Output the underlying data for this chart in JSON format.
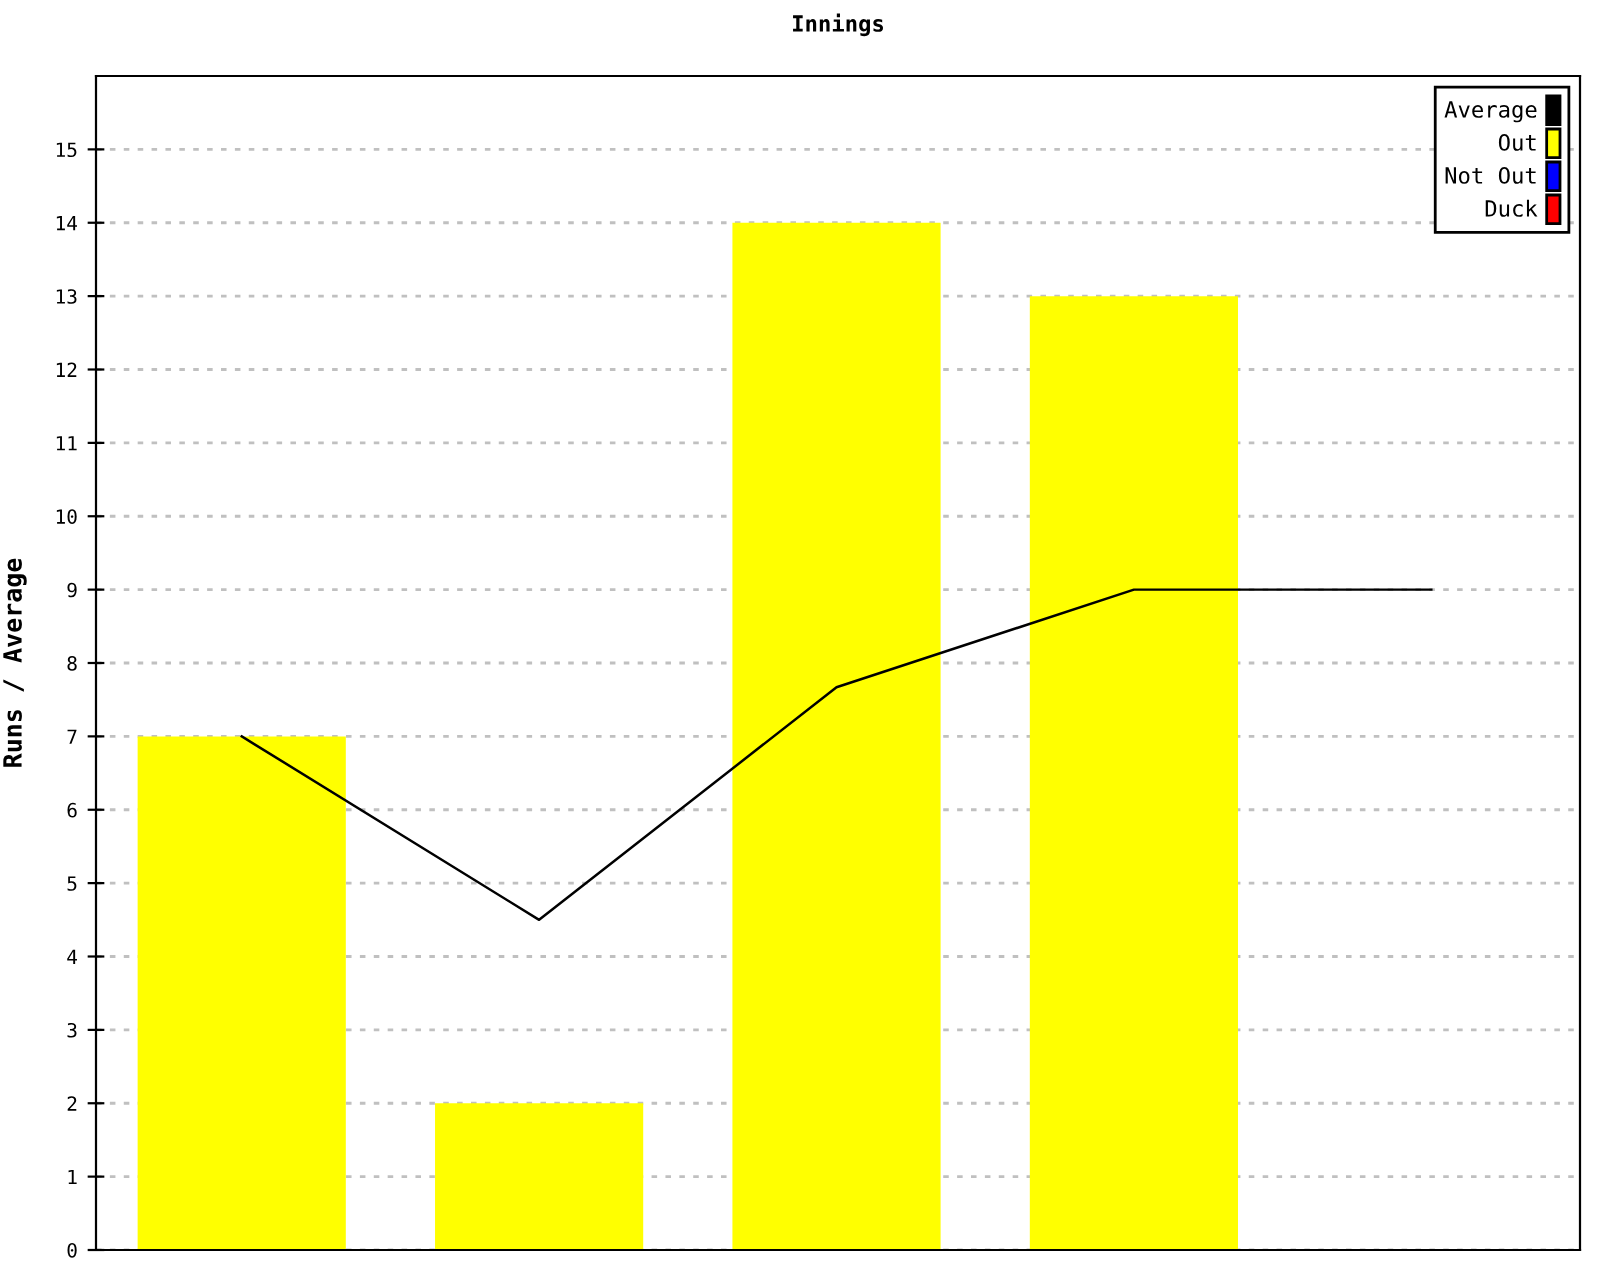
{
  "chart_data": {
    "type": "bar",
    "title": "Innings",
    "ylabel": "Runs / Average",
    "categories": [
      null,
      null,
      null,
      null,
      null
    ],
    "series": [
      {
        "name": "Average",
        "type": "line",
        "color": "#000000",
        "values": [
          7,
          4.5,
          7.67,
          9,
          9
        ]
      },
      {
        "name": "Out",
        "color": "#ffff00",
        "values": [
          7,
          2,
          14,
          13,
          null
        ]
      },
      {
        "name": "Not Out",
        "color": "#0000ff",
        "values": [
          null,
          null,
          null,
          null,
          null
        ]
      },
      {
        "name": "Duck",
        "color": "#ff0000",
        "values": [
          null,
          null,
          null,
          null,
          null
        ]
      }
    ],
    "ylim": [
      0,
      16
    ],
    "yticks": [
      0,
      1,
      2,
      3,
      4,
      5,
      6,
      7,
      8,
      9,
      10,
      11,
      12,
      13,
      14,
      15
    ],
    "grid": "y",
    "legend": "top right",
    "tick_labels": "y"
  }
}
